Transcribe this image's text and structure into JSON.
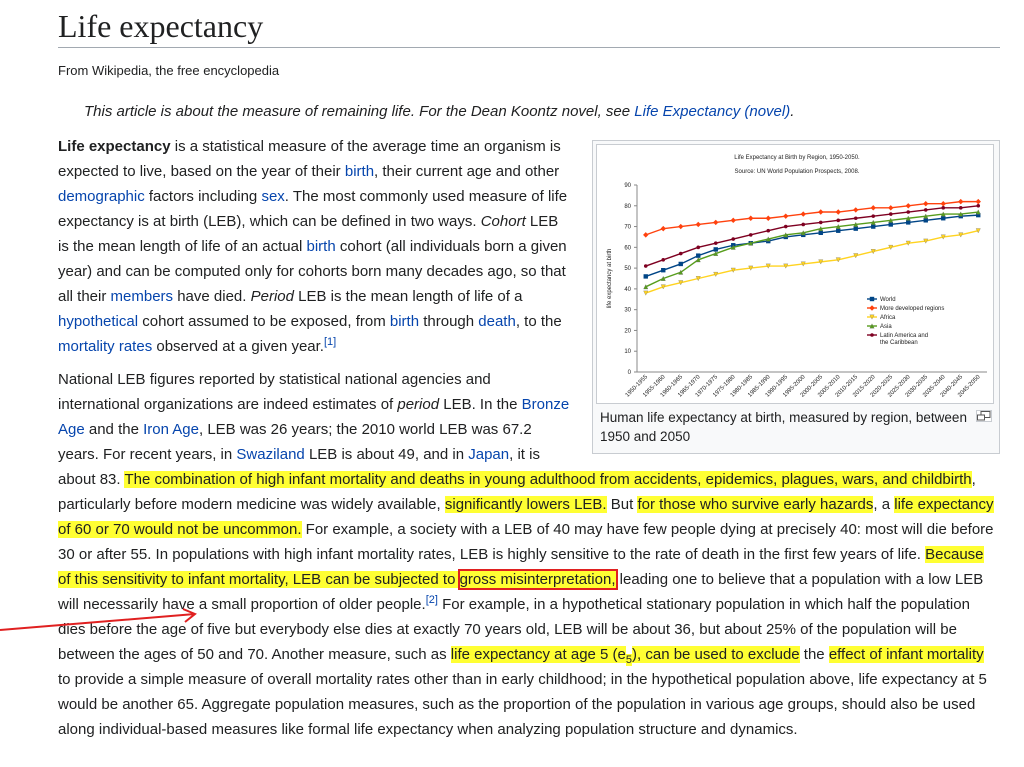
{
  "header": {
    "title": "Life expectancy",
    "tagline": "From Wikipedia, the free encyclopedia"
  },
  "hatnote": [
    "This article is about the measure of remaining life. For the Dean Koontz novel, see ",
    "Life Expectancy (novel)",
    "."
  ],
  "paragraphs": [
    [
      "Life expectancy",
      " is a statistical measure of the average time an organism is expected to live, based on the year of their ",
      "birth",
      ", their current age and other ",
      "demographic",
      " factors including ",
      "sex",
      ". The most commonly used measure of life expectancy is at birth (LEB), which can be defined in two ways. ",
      "Cohort",
      " LEB is the mean length of life of an actual ",
      "birth",
      " cohort (all individuals born a given year) and can be computed only for cohorts born many decades ago, so that all their ",
      "members",
      " have died. ",
      "Period",
      " LEB is the mean length of life of a ",
      "hypothetical",
      " cohort assumed to be exposed, from ",
      "birth",
      " through ",
      "death",
      ", to the ",
      "mortality rates",
      " observed at a given year.",
      "[1]"
    ],
    [
      "National LEB figures reported by statistical national agencies and international organizations are indeed estimates of ",
      "period",
      " LEB. In the ",
      "Bronze Age",
      " and the ",
      "Iron Age",
      ", LEB was 26 years; the 2010 world LEB was 67.2 years. For recent years, in ",
      "Swaziland",
      " LEB is about 49, and in ",
      "Japan",
      ", it is about 83. ",
      "The combination of high infant mortality and deaths in young adulthood from accidents, epidemics, plagues, wars, and childbirth",
      ", particularly before modern medicine was widely available, ",
      "significantly lowers LEB.",
      " But ",
      "for those who survive early hazards",
      ", a ",
      "life expectancy of 60 or 70 would not be uncommon.",
      " For example, a society with a LEB of 40 may have few people dying at precisely 40: most will die before 30 or after 55. In populations with high infant mortality rates, LEB is highly sensitive to the rate of death in the first few years of life. ",
      "Because of this sensitivity to infant mortality, LEB can be subjected to ",
      "gross misinterpretation,",
      " leading one to believe that a population with a low LEB will necessarily have a small proportion of older people.",
      "[2]",
      " For example, in a hypothetical stationary population in which half the population dies before the age of five but everybody else dies at exactly 70 years old, LEB will be about 36, but about 25% of the population will be between the ages of 50 and 70. Another measure, such as ",
      "life expectancy at age 5 (e",
      "5",
      "), can be used to exclude",
      " the ",
      "effect of infant mortality",
      " to provide a simple measure of overall mortality rates other than in early childhood; in the hypothetical population above, life expectancy at 5 would be another 65. Aggregate population measures, such as the proportion of the population in various age groups, should also be used along individual-based measures like formal life expectancy when analyzing population structure and dynamics."
    ]
  ],
  "figure": {
    "caption": "Human life expectancy at birth, measured by region, between 1950 and 2050",
    "chart_data": {
      "type": "line",
      "title": "Life Expectancy at Birth by Region, 1950-2050.",
      "subtitle": "Source: UN World Population Prospects, 2008.",
      "y_label": "life expectancy at birth",
      "categories": [
        "1950-1955",
        "1955-1960",
        "1960-1965",
        "1965-1970",
        "1970-1975",
        "1975-1980",
        "1980-1985",
        "1985-1990",
        "1990-1995",
        "1995-2000",
        "2000-2005",
        "2005-2010",
        "2010-2015",
        "2015-2020",
        "2020-2025",
        "2025-2030",
        "2030-2035",
        "2035-2040",
        "2040-2045",
        "2045-2050"
      ],
      "ylim": [
        0,
        90
      ],
      "yticks": [
        0,
        10,
        20,
        30,
        40,
        50,
        60,
        70,
        80,
        90
      ],
      "series": [
        {
          "name": "World",
          "color": "#004586",
          "values": [
            46,
            49,
            52,
            56,
            59,
            61,
            62,
            63,
            65,
            66,
            67,
            68,
            69,
            70,
            71,
            72,
            73,
            74,
            75,
            75.5
          ]
        },
        {
          "name": "More developed regions",
          "color": "#ff420e",
          "values": [
            66,
            69,
            70,
            71,
            72,
            73,
            74,
            74,
            75,
            76,
            77,
            77,
            78,
            79,
            79,
            80,
            81,
            81,
            82,
            82
          ]
        },
        {
          "name": "Africa",
          "color": "#ffd320",
          "values": [
            38,
            41,
            43,
            45,
            47,
            49,
            50,
            51,
            51,
            52,
            53,
            54,
            56,
            58,
            60,
            62,
            63,
            65,
            66,
            68
          ]
        },
        {
          "name": "Asia",
          "color": "#579d1c",
          "values": [
            41,
            45,
            48,
            54,
            57,
            60,
            62,
            64,
            66,
            67,
            69,
            70,
            71,
            72,
            73,
            74,
            75,
            76,
            76,
            77
          ]
        },
        {
          "name": "Latin America and the Caribbean",
          "color": "#7e0021",
          "values": [
            51,
            54,
            57,
            60,
            62,
            64,
            66,
            68,
            70,
            71,
            72,
            73,
            74,
            75,
            76,
            77,
            78,
            79,
            79,
            80
          ]
        }
      ]
    }
  }
}
